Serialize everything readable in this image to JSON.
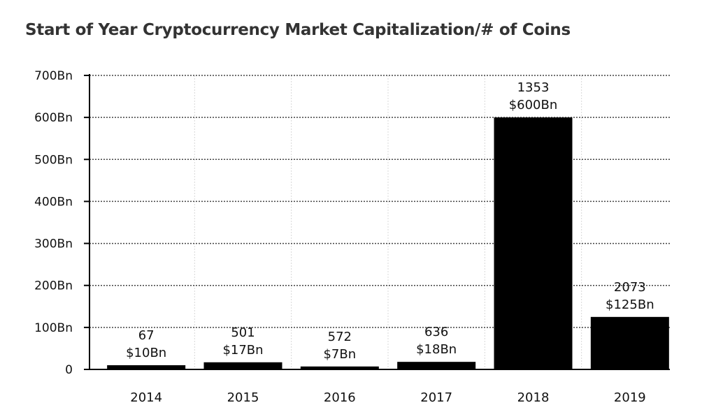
{
  "chart_data": {
    "type": "bar",
    "title": "Start of Year Cryptocurrency Market Capitalization/# of Coins",
    "xlabel": "",
    "ylabel": "",
    "categories": [
      "2014",
      "2015",
      "2016",
      "2017",
      "2018",
      "2019"
    ],
    "values": [
      10,
      17,
      7,
      18,
      600,
      125
    ],
    "coin_counts": [
      "67",
      "501",
      "572",
      "636",
      "1353",
      "2073"
    ],
    "value_labels": [
      "$10Bn",
      "$17Bn",
      "$7Bn",
      "$18Bn",
      "$600Bn",
      "$125Bn"
    ],
    "y_ticks": [
      0,
      100,
      200,
      300,
      400,
      500,
      600,
      700
    ],
    "y_tick_labels": [
      "0",
      "100Bn",
      "200Bn",
      "300Bn",
      "400Bn",
      "500Bn",
      "600Bn",
      "700Bn"
    ],
    "ylim": [
      0,
      700
    ],
    "grid": true,
    "bar_color": "#000000"
  }
}
